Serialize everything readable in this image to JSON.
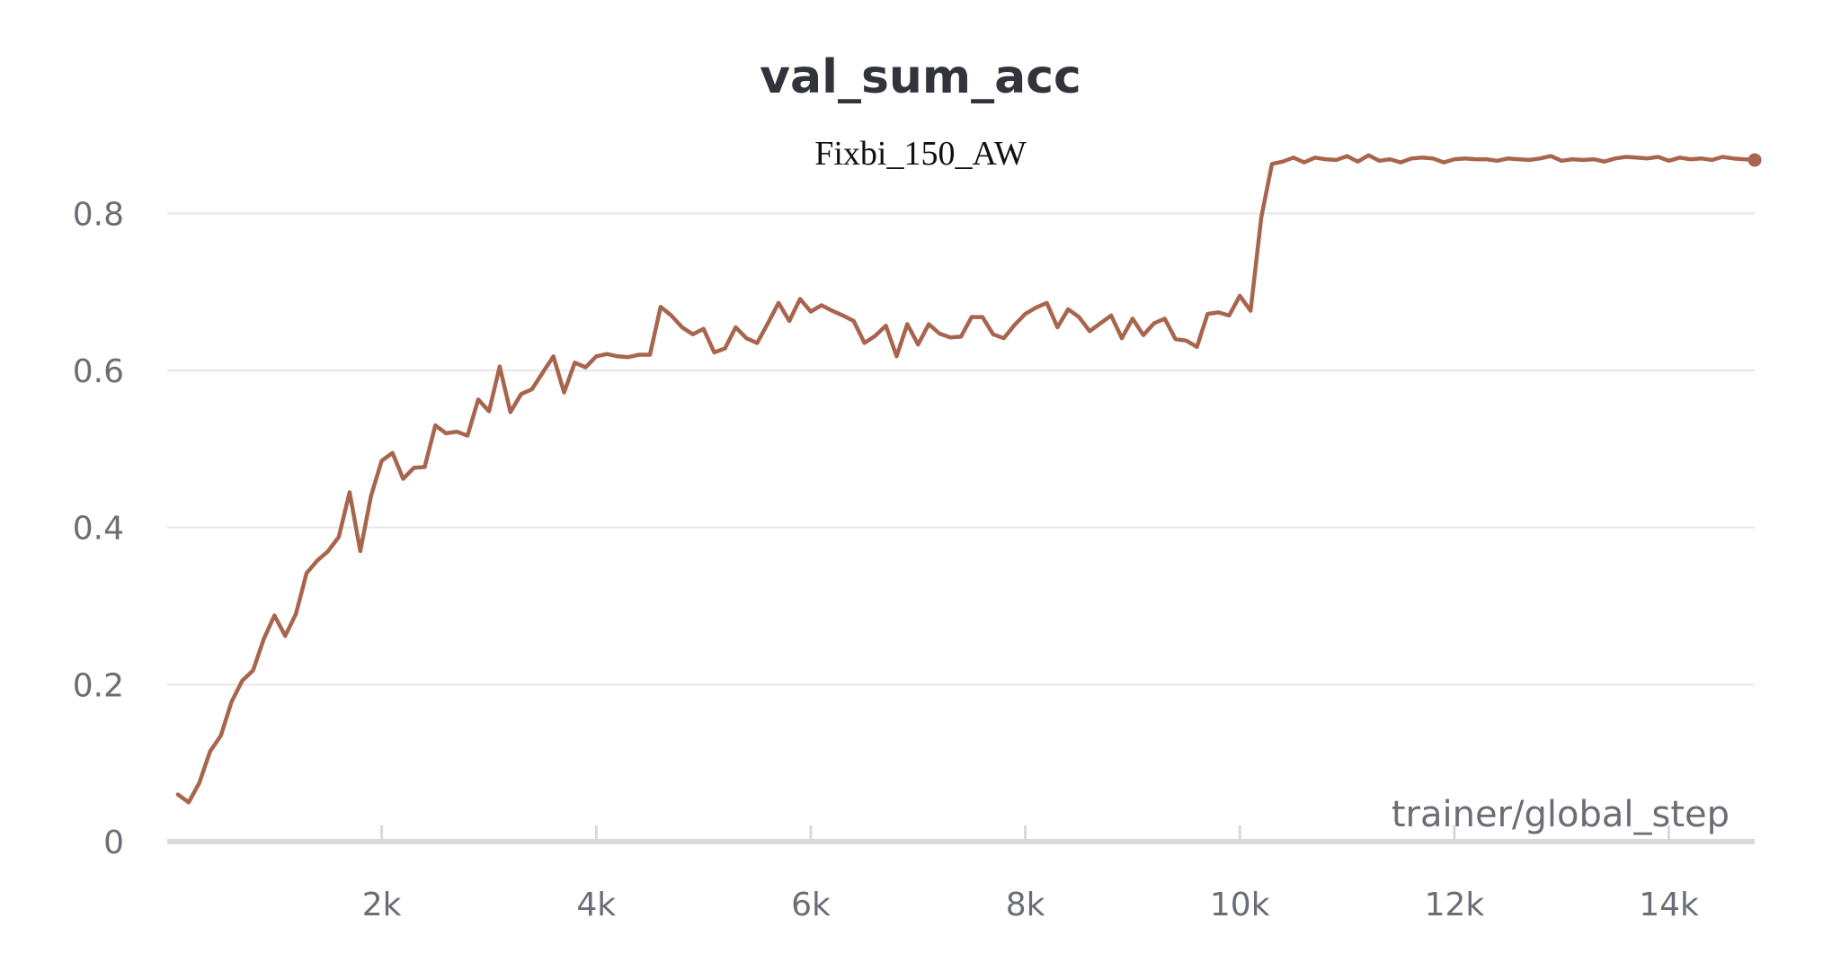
{
  "chart_data": {
    "type": "line",
    "title": "val_sum_acc",
    "subtitle": "Fixbi_150_AW",
    "xlabel": "trainer/global_step",
    "ylabel": "",
    "xlim": [
      0,
      14800
    ],
    "ylim": [
      0,
      0.9
    ],
    "x_ticks": [
      2000,
      4000,
      6000,
      8000,
      10000,
      12000,
      14000
    ],
    "x_tick_labels": [
      "2k",
      "4k",
      "6k",
      "8k",
      "10k",
      "12k",
      "14k"
    ],
    "y_ticks": [
      0,
      0.2,
      0.4,
      0.6,
      0.8
    ],
    "y_tick_labels": [
      "0",
      "0.2",
      "0.4",
      "0.6",
      "0.8"
    ],
    "grid": true,
    "legend": false,
    "end_marker": true,
    "series": [
      {
        "color": "#a8654d",
        "x": [
          100,
          200,
          300,
          400,
          500,
          600,
          700,
          800,
          900,
          1000,
          1100,
          1200,
          1300,
          1400,
          1500,
          1600,
          1700,
          1800,
          1900,
          2000,
          2100,
          2200,
          2300,
          2400,
          2500,
          2600,
          2700,
          2800,
          2900,
          3000,
          3100,
          3200,
          3300,
          3400,
          3500,
          3600,
          3700,
          3800,
          3900,
          4000,
          4100,
          4200,
          4300,
          4400,
          4500,
          4600,
          4700,
          4800,
          4900,
          5000,
          5100,
          5200,
          5300,
          5400,
          5500,
          5600,
          5700,
          5800,
          5900,
          6000,
          6100,
          6200,
          6300,
          6400,
          6500,
          6600,
          6700,
          6800,
          6900,
          7000,
          7100,
          7200,
          7300,
          7400,
          7500,
          7600,
          7700,
          7800,
          7900,
          8000,
          8100,
          8200,
          8300,
          8400,
          8500,
          8600,
          8700,
          8800,
          8900,
          9000,
          9100,
          9200,
          9300,
          9400,
          9500,
          9600,
          9700,
          9800,
          9900,
          10000,
          10100,
          10200,
          10300,
          10400,
          10500,
          10600,
          10700,
          10800,
          10900,
          11000,
          11100,
          11200,
          11300,
          11400,
          11500,
          11600,
          11700,
          11800,
          11900,
          12000,
          12100,
          12200,
          12300,
          12400,
          12500,
          12600,
          12700,
          12800,
          12900,
          13000,
          13100,
          13200,
          13300,
          13400,
          13500,
          13600,
          13700,
          13800,
          13900,
          14000,
          14100,
          14200,
          14300,
          14400,
          14500,
          14600,
          14700,
          14800
        ],
        "y": [
          0.06,
          0.05,
          0.075,
          0.115,
          0.135,
          0.178,
          0.205,
          0.218,
          0.258,
          0.288,
          0.262,
          0.29,
          0.342,
          0.358,
          0.37,
          0.388,
          0.445,
          0.37,
          0.44,
          0.485,
          0.495,
          0.462,
          0.476,
          0.477,
          0.53,
          0.52,
          0.522,
          0.517,
          0.563,
          0.548,
          0.605,
          0.547,
          0.57,
          0.576,
          0.597,
          0.618,
          0.572,
          0.61,
          0.604,
          0.618,
          0.621,
          0.618,
          0.617,
          0.62,
          0.62,
          0.681,
          0.67,
          0.655,
          0.646,
          0.653,
          0.623,
          0.628,
          0.655,
          0.641,
          0.635,
          0.66,
          0.686,
          0.663,
          0.691,
          0.675,
          0.683,
          0.676,
          0.67,
          0.663,
          0.635,
          0.644,
          0.657,
          0.618,
          0.659,
          0.633,
          0.659,
          0.647,
          0.642,
          0.643,
          0.668,
          0.668,
          0.646,
          0.641,
          0.658,
          0.672,
          0.68,
          0.686,
          0.655,
          0.678,
          0.668,
          0.65,
          0.66,
          0.67,
          0.641,
          0.666,
          0.645,
          0.66,
          0.666,
          0.64,
          0.638,
          0.63,
          0.672,
          0.674,
          0.67,
          0.695,
          0.676,
          0.795,
          0.863,
          0.866,
          0.871,
          0.865,
          0.871,
          0.869,
          0.868,
          0.873,
          0.866,
          0.874,
          0.867,
          0.869,
          0.865,
          0.87,
          0.871,
          0.87,
          0.865,
          0.869,
          0.87,
          0.869,
          0.869,
          0.867,
          0.87,
          0.869,
          0.868,
          0.87,
          0.873,
          0.867,
          0.869,
          0.868,
          0.869,
          0.866,
          0.87,
          0.872,
          0.871,
          0.87,
          0.872,
          0.867,
          0.871,
          0.869,
          0.87,
          0.868,
          0.872,
          0.87,
          0.869,
          0.868
        ]
      }
    ]
  }
}
